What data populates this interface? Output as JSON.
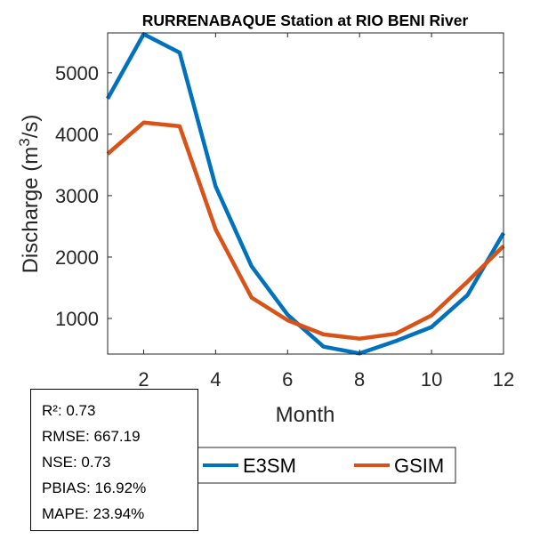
{
  "chart_data": {
    "type": "line",
    "title": "RURRENABAQUE  Station at  RIO BENI  River",
    "xlabel": "Month",
    "ylabel": "Discharge (m",
    "ylabel_sup": "3",
    "ylabel_end": "/s)",
    "xlim": [
      1,
      12
    ],
    "ylim": [
      420,
      5650
    ],
    "xticks": [
      2,
      4,
      6,
      8,
      10,
      12
    ],
    "yticks": [
      1000,
      2000,
      3000,
      4000,
      5000
    ],
    "x": [
      1,
      2,
      3,
      4,
      5,
      6,
      7,
      8,
      9,
      10,
      11,
      12
    ],
    "series": [
      {
        "name": "E3SM",
        "color": "#0072BD",
        "values": [
          4580,
          5630,
          5330,
          3150,
          1850,
          1060,
          540,
          430,
          630,
          860,
          1380,
          2390
        ]
      },
      {
        "name": "GSIM",
        "color": "#D95319",
        "values": [
          3680,
          4190,
          4130,
          2450,
          1340,
          970,
          740,
          670,
          750,
          1050,
          1600,
          2180
        ]
      }
    ],
    "grid": false,
    "legend_position": "bottom-right"
  },
  "stats": {
    "r2": "R²: 0.73",
    "rmse": "RMSE: 667.19",
    "nse": "NSE: 0.73",
    "pbias": "PBIAS: 16.92%",
    "mape": "MAPE: 23.94%"
  }
}
